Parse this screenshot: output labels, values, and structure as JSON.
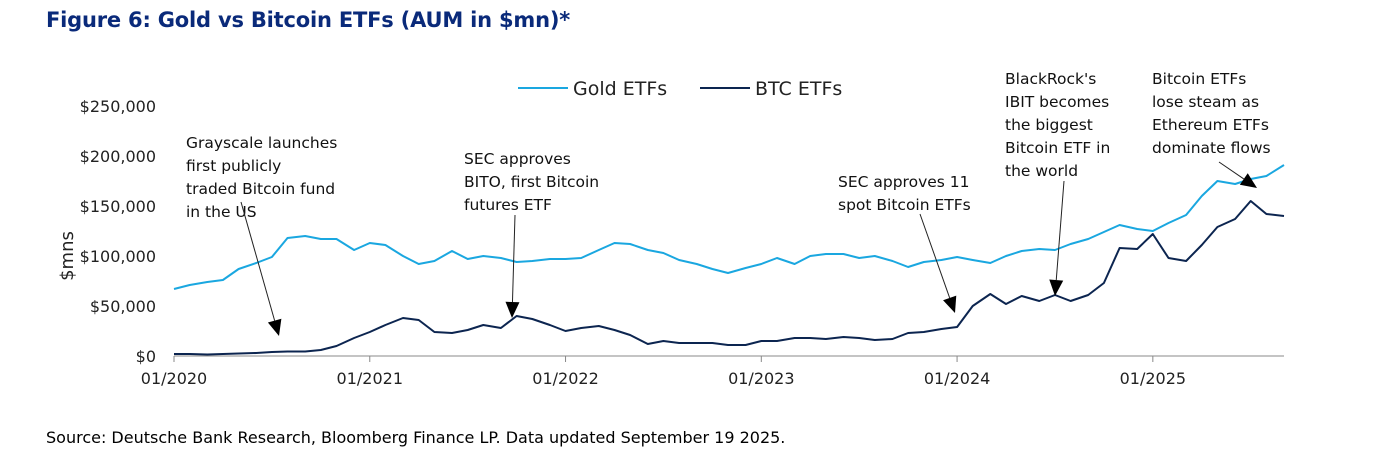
{
  "title": "Figure 6: Gold vs Bitcoin ETFs (AUM in $mn)*",
  "source": "Source: Deutsche Bank Research, Bloomberg Finance LP. Data updated September 19 2025.",
  "colors": {
    "gold": "#1aa7e0",
    "btc": "#0c2550",
    "axis": "#888888"
  },
  "chart_data": {
    "type": "line",
    "ylabel": "$mns",
    "ylim": [
      0,
      250000
    ],
    "y_ticks": [
      "$0",
      "$50,000",
      "$100,000",
      "$150,000",
      "$200,000",
      "$250,000"
    ],
    "y_tick_values": [
      0,
      50000,
      100000,
      150000,
      200000,
      250000
    ],
    "x_ticks": [
      "01/2020",
      "01/2021",
      "01/2022",
      "01/2023",
      "01/2024",
      "01/2025"
    ],
    "x_tick_values": [
      2020,
      2021,
      2022,
      2023,
      2024,
      2025
    ],
    "xlim": [
      2020,
      2025.67
    ],
    "legend_position": "top",
    "series": [
      {
        "name": "Gold ETFs",
        "color": "#1aa7e0",
        "x": [
          2020.0,
          2020.08,
          2020.17,
          2020.25,
          2020.33,
          2020.42,
          2020.5,
          2020.58,
          2020.67,
          2020.75,
          2020.83,
          2020.92,
          2021.0,
          2021.08,
          2021.17,
          2021.25,
          2021.33,
          2021.42,
          2021.5,
          2021.58,
          2021.67,
          2021.75,
          2021.83,
          2021.92,
          2022.0,
          2022.08,
          2022.17,
          2022.25,
          2022.33,
          2022.42,
          2022.5,
          2022.58,
          2022.67,
          2022.75,
          2022.83,
          2022.92,
          2023.0,
          2023.08,
          2023.17,
          2023.25,
          2023.33,
          2023.42,
          2023.5,
          2023.58,
          2023.67,
          2023.75,
          2023.83,
          2023.92,
          2024.0,
          2024.08,
          2024.17,
          2024.25,
          2024.33,
          2024.42,
          2024.5,
          2024.58,
          2024.67,
          2024.75,
          2024.83,
          2024.92,
          2025.0,
          2025.08,
          2025.17,
          2025.25,
          2025.33,
          2025.42,
          2025.5,
          2025.58,
          2025.67
        ],
        "values": [
          67000,
          71000,
          74000,
          76000,
          87000,
          93000,
          99000,
          118000,
          120000,
          117000,
          117000,
          106000,
          113000,
          111000,
          100000,
          92000,
          95000,
          105000,
          97000,
          100000,
          98000,
          94000,
          95000,
          97000,
          97000,
          98000,
          106000,
          113000,
          112000,
          106000,
          103000,
          96000,
          92000,
          87000,
          83000,
          88000,
          92000,
          98000,
          92000,
          100000,
          102000,
          102000,
          98000,
          100000,
          95000,
          89000,
          94000,
          96000,
          99000,
          96000,
          93000,
          100000,
          105000,
          107000,
          106000,
          112000,
          117000,
          124000,
          131000,
          127000,
          125000,
          133000,
          141000,
          160000,
          175000,
          172000,
          177000,
          180000,
          191000
        ]
      },
      {
        "name": "BTC ETFs",
        "color": "#0c2550",
        "x": [
          2020.0,
          2020.08,
          2020.17,
          2020.25,
          2020.33,
          2020.42,
          2020.5,
          2020.58,
          2020.67,
          2020.75,
          2020.83,
          2020.92,
          2021.0,
          2021.08,
          2021.17,
          2021.25,
          2021.33,
          2021.42,
          2021.5,
          2021.58,
          2021.67,
          2021.75,
          2021.83,
          2021.92,
          2022.0,
          2022.08,
          2022.17,
          2022.25,
          2022.33,
          2022.42,
          2022.5,
          2022.58,
          2022.67,
          2022.75,
          2022.83,
          2022.92,
          2023.0,
          2023.08,
          2023.17,
          2023.25,
          2023.33,
          2023.42,
          2023.5,
          2023.58,
          2023.67,
          2023.75,
          2023.83,
          2023.92,
          2024.0,
          2024.08,
          2024.17,
          2024.25,
          2024.33,
          2024.42,
          2024.5,
          2024.58,
          2024.67,
          2024.75,
          2024.83,
          2024.92,
          2025.0,
          2025.08,
          2025.17,
          2025.25,
          2025.33,
          2025.42,
          2025.5,
          2025.58,
          2025.67
        ],
        "values": [
          2000,
          2000,
          1500,
          2000,
          2500,
          3000,
          4000,
          4500,
          4500,
          6000,
          10000,
          18000,
          24000,
          31000,
          38000,
          36000,
          24000,
          23000,
          26000,
          31000,
          28000,
          40000,
          37000,
          31000,
          25000,
          28000,
          30000,
          26000,
          21000,
          12000,
          15000,
          13000,
          13000,
          13000,
          11000,
          11000,
          15000,
          15000,
          18000,
          18000,
          17000,
          19000,
          18000,
          16000,
          17000,
          23000,
          24000,
          27000,
          29000,
          50000,
          62000,
          52000,
          60000,
          55000,
          61000,
          55000,
          61000,
          73000,
          108000,
          107000,
          122000,
          98000,
          95000,
          111000,
          129000,
          137000,
          155000,
          142000,
          140000
        ]
      }
    ],
    "annotations": [
      {
        "lines": [
          "Grayscale launches",
          "first publicly",
          "traded Bitcoin fund",
          "in the US"
        ]
      },
      {
        "lines": [
          "SEC approves",
          "BITO, first Bitcoin",
          "futures ETF"
        ]
      },
      {
        "lines": [
          "SEC approves 11",
          "spot Bitcoin ETFs"
        ]
      },
      {
        "lines": [
          "BlackRock's",
          "IBIT becomes",
          "the biggest",
          "Bitcoin ETF in",
          "the world"
        ]
      },
      {
        "lines": [
          "Bitcoin ETFs",
          "lose steam as",
          "Ethereum ETFs",
          "dominate flows"
        ]
      }
    ]
  }
}
